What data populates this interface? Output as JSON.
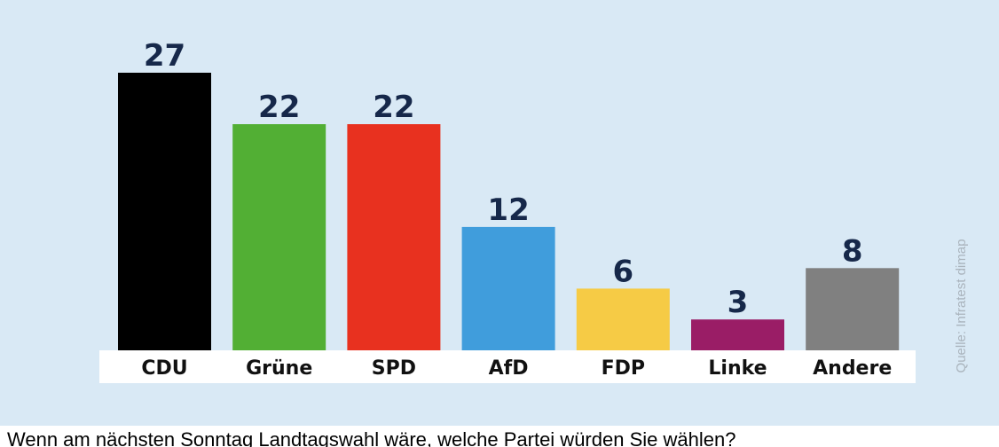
{
  "chart_data": {
    "type": "bar",
    "categories": [
      "CDU",
      "Grüne",
      "SPD",
      "AfD",
      "FDP",
      "Linke",
      "Andere"
    ],
    "values": [
      27,
      22,
      22,
      12,
      6,
      3,
      8
    ],
    "colors": [
      "#000000",
      "#52af34",
      "#e8311f",
      "#409ddc",
      "#f6cb45",
      "#9a1d66",
      "#808080"
    ],
    "ylim": [
      0,
      27
    ],
    "grid": false,
    "legend": "none",
    "source": "Quelle: Infratest dimap"
  },
  "caption": "Wenn am nächsten Sonntag Landtagswahl wäre, welche Partei würden Sie wählen?"
}
